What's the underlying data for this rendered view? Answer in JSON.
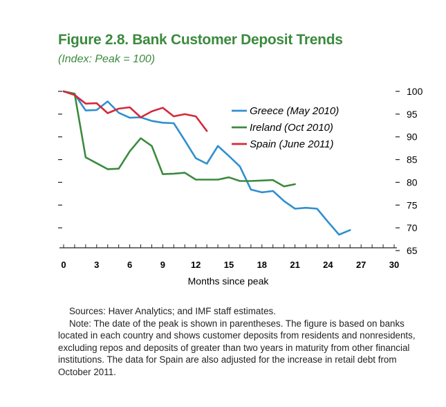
{
  "header": {
    "title": "Figure 2.8. Bank Customer Deposit Trends",
    "subtitle": "(Index: Peak = 100)"
  },
  "chart_data": {
    "type": "line",
    "title": "Figure 2.8. Bank Customer Deposit Trends",
    "subtitle": "(Index: Peak = 100)",
    "xlabel": "Months since peak",
    "ylabel": "",
    "xlim": [
      0,
      30
    ],
    "ylim": [
      65,
      100
    ],
    "x_ticks": [
      0,
      3,
      6,
      9,
      12,
      15,
      18,
      21,
      24,
      27,
      30
    ],
    "y_ticks": [
      65,
      70,
      75,
      80,
      85,
      90,
      95,
      100
    ],
    "grid": false,
    "legend_position": "top-center",
    "series": [
      {
        "name": "Greece (May 2010)",
        "color": "#2f8fd0",
        "x": [
          0,
          1,
          2,
          3,
          4,
          5,
          6,
          7,
          8,
          9,
          10,
          11,
          12,
          13,
          14,
          15,
          16,
          17,
          18,
          19,
          20,
          21,
          22,
          23,
          24,
          25,
          26
        ],
        "y": [
          100,
          99.4,
          95.8,
          95.9,
          97.8,
          95.3,
          94.2,
          94.3,
          93.5,
          93.1,
          93.0,
          89.2,
          85.3,
          84.1,
          88.0,
          85.8,
          83.5,
          78.4,
          77.8,
          78.1,
          75.9,
          74.2,
          74.4,
          74.2,
          71.3,
          68.5,
          69.5
        ]
      },
      {
        "name": "Ireland (Oct 2010)",
        "color": "#3b8a3e",
        "x": [
          0,
          1,
          2,
          3,
          4,
          5,
          6,
          7,
          8,
          9,
          10,
          11,
          12,
          13,
          14,
          15,
          16,
          17,
          18,
          19,
          20,
          21
        ],
        "y": [
          100,
          99.5,
          85.5,
          84.2,
          82.9,
          83.0,
          86.8,
          89.7,
          88.0,
          81.8,
          81.9,
          82.1,
          80.6,
          80.6,
          80.6,
          81.1,
          80.3,
          80.3,
          80.4,
          80.5,
          79.1,
          79.6
        ]
      },
      {
        "name": "Spain (June 2011)",
        "color": "#d6283a",
        "x": [
          0,
          1,
          2,
          3,
          4,
          5,
          6,
          7,
          8,
          9,
          10,
          11,
          12,
          13
        ],
        "y": [
          100,
          99.2,
          97.3,
          97.4,
          95.2,
          96.2,
          96.5,
          94.3,
          95.6,
          96.4,
          94.5,
          95.0,
          94.5,
          91.3
        ]
      }
    ]
  },
  "notes": {
    "sources": "Sources: Haver Analytics; and IMF staff estimates.",
    "note": "Note: The date of the peak is shown in parentheses. The figure is based on banks located in each country and shows customer deposits from residents and nonresidents, excluding repos and deposits of greater than two years in maturity from other financial institutions. The data for Spain are also adjusted for the increase in retail debt from October 2011."
  }
}
